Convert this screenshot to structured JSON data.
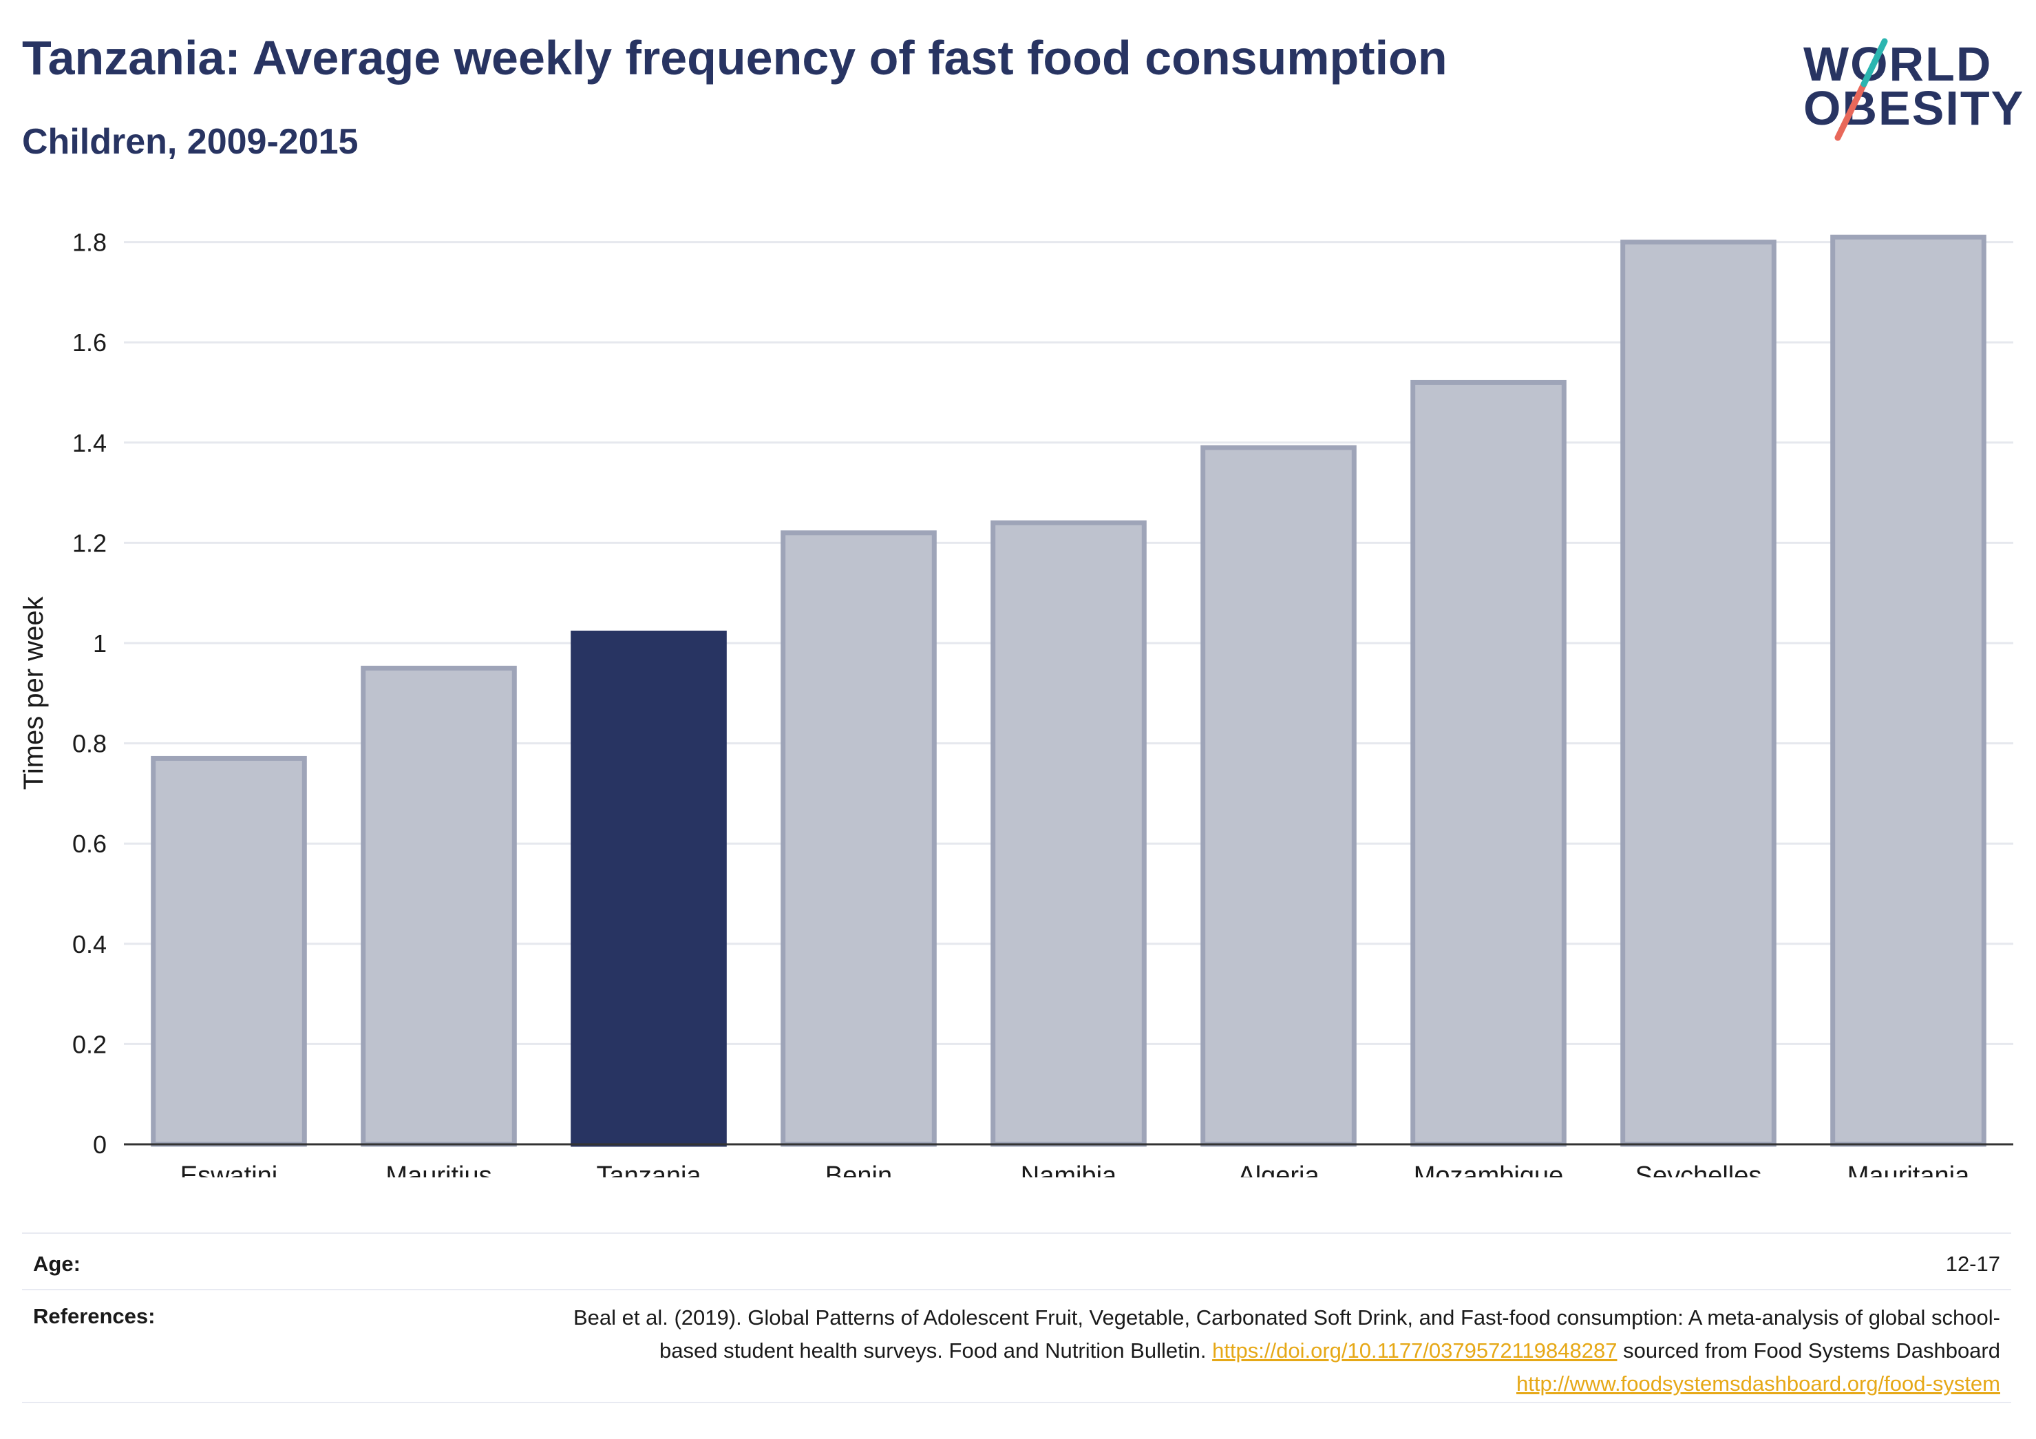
{
  "header": {
    "title": "Tanzania: Average weekly frequency of fast food consumption",
    "subtitle": "Children, 2009-2015"
  },
  "logo": {
    "line1": "WORLD",
    "line2": "OBESITY"
  },
  "colors": {
    "highlight": "#283462",
    "bar": "#bec2ce",
    "bar_border": "#9ea4b8",
    "link": "#e6a817",
    "logo_teal": "#2bb5b0",
    "logo_coral": "#e8685a"
  },
  "chart_data": {
    "type": "bar",
    "categories": [
      "Eswatini",
      "Mauritius",
      "Tanzania",
      "Benin",
      "Namibia",
      "Algeria",
      "Mozambique",
      "Seychelles",
      "Mauritania"
    ],
    "values": [
      0.77,
      0.95,
      1.02,
      1.22,
      1.24,
      1.39,
      1.52,
      1.8,
      1.81
    ],
    "highlight": "Tanzania",
    "ylabel": "Times per week",
    "xlabel": "",
    "ylim": [
      0,
      1.9
    ],
    "yticks": [
      0,
      0.2,
      0.4,
      0.6,
      0.8,
      1,
      1.2,
      1.4,
      1.6,
      1.8
    ],
    "ytick_labels": [
      "0",
      "0.2",
      "0.4",
      "0.6",
      "0.8",
      "1",
      "1.2",
      "1.4",
      "1.6",
      "1.8"
    ],
    "grid": true
  },
  "info": {
    "age_label": "Age:",
    "age_value": "12-17",
    "references_label": "References:",
    "ref_text1": "Beal et al. (2019). Global Patterns of Adolescent Fruit, Vegetable, Carbonated Soft Drink, and Fast-food consumption: A meta-analysis of global school-based student health surveys. Food and Nutrition Bulletin. ",
    "ref_link1": "https://doi.org/10.1177/0379572119848287",
    "ref_text2": " sourced from Food Systems Dashboard ",
    "ref_link2": "http://www.foodsystemsdashboard.org/food-system"
  }
}
